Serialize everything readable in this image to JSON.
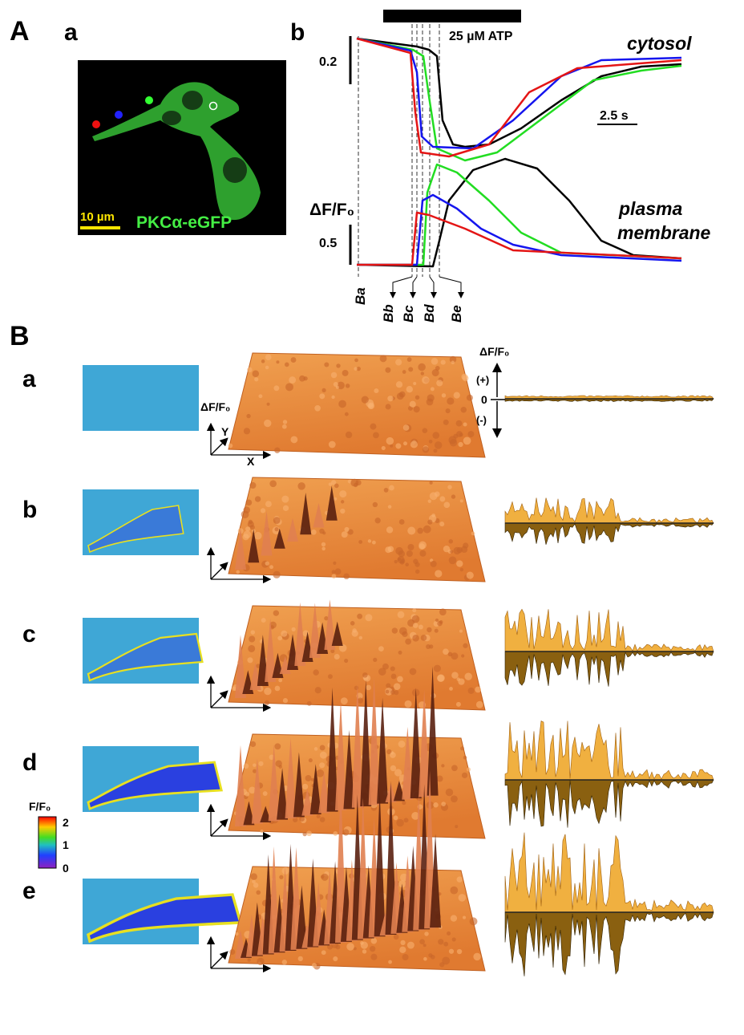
{
  "panel_A": {
    "label": "A",
    "sub_a": {
      "label": "a",
      "scale_bar": "10 µm",
      "protein": "PKCα-eGFP"
    },
    "sub_b": {
      "label": "b",
      "stimulus": "25 µM ATP",
      "cytosol": "cytosol",
      "membrane": [
        "plasma",
        "membrane"
      ],
      "ylabel": "ΔF/F₀",
      "scale_cytosol": 0.2,
      "scale_membrane": 0.5,
      "time_scale": "2.5 s",
      "markers": [
        "Ba",
        "Bb",
        "Bc",
        "Bd",
        "Be"
      ]
    }
  },
  "panel_B": {
    "label": "B",
    "rows": [
      "a",
      "b",
      "c",
      "d",
      "e"
    ],
    "surface_axis": {
      "z": "ΔF/F₀",
      "y": "Y",
      "x": "X"
    },
    "profile_axis": {
      "title": "ΔF/F₀",
      "plus": "(+)",
      "zero": 0,
      "minus": "(-)"
    },
    "colorbar": {
      "title": "F/F₀",
      "ticks": [
        2,
        1,
        0
      ]
    }
  }
}
